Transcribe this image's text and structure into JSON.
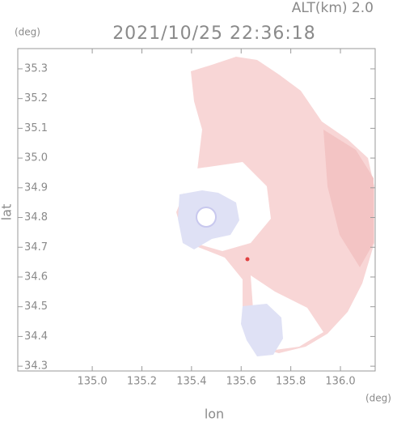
{
  "chart_data": {
    "type": "map",
    "title": "2021/10/25 22:36:18",
    "subtitle": "ALT(km) 2.0",
    "x_label": "lon",
    "y_label": "lat",
    "x_unit": "(deg)",
    "y_unit": "(deg)",
    "xlim": [
      134.7,
      136.14
    ],
    "ylim": [
      34.284,
      35.368
    ],
    "xticks": [
      {
        "value": 135,
        "label": "135.0"
      },
      135.2,
      135.4,
      135.6,
      135.8,
      {
        "value": 136,
        "label": "136.0"
      }
    ],
    "yticks": [
      34.3,
      34.4,
      34.5,
      34.6,
      34.7,
      34.8,
      34.9,
      {
        "value": 35,
        "label": "35.0"
      },
      35.1,
      35.2,
      35.3
    ]
  }
}
